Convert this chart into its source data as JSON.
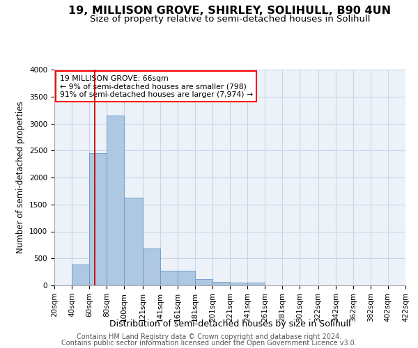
{
  "title": "19, MILLISON GROVE, SHIRLEY, SOLIHULL, B90 4UN",
  "subtitle": "Size of property relative to semi-detached houses in Solihull",
  "xlabel": "Distribution of semi-detached houses by size in Solihull",
  "ylabel": "Number of semi-detached properties",
  "footer1": "Contains HM Land Registry data © Crown copyright and database right 2024.",
  "footer2": "Contains public sector information licensed under the Open Government Licence v3.0.",
  "annotation_title": "19 MILLISON GROVE: 66sqm",
  "annotation_line1": "← 9% of semi-detached houses are smaller (798)",
  "annotation_line2": "91% of semi-detached houses are larger (7,974) →",
  "property_size": 66,
  "bar_edges": [
    20,
    40,
    60,
    80,
    100,
    121,
    141,
    161,
    181,
    201,
    221,
    241,
    261,
    281,
    301,
    322,
    342,
    362,
    382,
    402,
    422
  ],
  "bar_heights": [
    5,
    390,
    2450,
    3150,
    1620,
    690,
    275,
    275,
    120,
    65,
    55,
    55,
    0,
    0,
    0,
    0,
    0,
    0,
    0,
    0
  ],
  "bar_color": "#adc8e0",
  "bar_edge_color": "#6699cc",
  "vline_color": "#cc0000",
  "ylim": [
    0,
    4000
  ],
  "yticks": [
    0,
    500,
    1000,
    1500,
    2000,
    2500,
    3000,
    3500,
    4000
  ],
  "grid_color": "#c8d4e8",
  "bg_color": "#edf2f9",
  "title_fontsize": 11.5,
  "subtitle_fontsize": 9.5,
  "ylabel_fontsize": 8.5,
  "xlabel_fontsize": 9,
  "tick_fontsize": 7.5,
  "footer_fontsize": 7,
  "annot_fontsize": 7.8
}
